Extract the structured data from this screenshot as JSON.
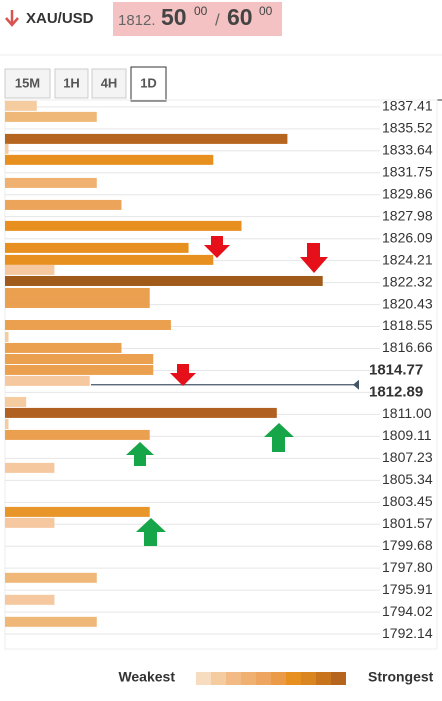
{
  "header": {
    "symbol": "XAU/USD",
    "bid_prefix": "1812.",
    "bid_big": "50",
    "bid_sup": "00",
    "separator": "/",
    "ask_big": "60",
    "ask_sup": "00"
  },
  "tabs": [
    "15M",
    "1H",
    "4H",
    "1D"
  ],
  "active_tab": "1D",
  "chart_data": {
    "type": "bar",
    "orientation": "horizontal",
    "grid": true,
    "ylim": [
      1791.2,
      1838.0
    ],
    "xlim": [
      0,
      100
    ],
    "yticks": [
      1837.41,
      1835.52,
      1833.64,
      1831.75,
      1829.86,
      1827.98,
      1826.09,
      1824.21,
      1822.32,
      1820.43,
      1818.55,
      1816.66,
      1814.77,
      1812.89,
      {
        "value": 1811,
        "label": "1811.00"
      },
      1809.11,
      1807.23,
      1805.34,
      1803.45,
      1801.57,
      1799.68,
      {
        "value": 1797.8,
        "label": "1797.80"
      },
      1795.91,
      1794.02,
      1792.14
    ],
    "bold_yticks": [
      1814.77,
      1812.89
    ],
    "price_line": 1813.55,
    "bars": [
      {
        "price": 1837.5,
        "strength": 9,
        "color": "#f5cba0"
      },
      {
        "price": 1836.55,
        "strength": 26,
        "color": "#f0b878"
      },
      {
        "price": 1834.66,
        "strength": 80,
        "color": "#b5651d"
      },
      {
        "price": 1833.8,
        "strength": 1,
        "color": "#f5cba0"
      },
      {
        "price": 1832.86,
        "strength": 59,
        "color": "#e8901f"
      },
      {
        "price": 1830.88,
        "strength": 26,
        "color": "#f0b070"
      },
      {
        "price": 1828.99,
        "strength": 33,
        "color": "#eca35a"
      },
      {
        "price": 1827.19,
        "strength": 67,
        "color": "#e8901f"
      },
      {
        "price": 1825.3,
        "strength": 52,
        "color": "#e8901f"
      },
      {
        "price": 1824.27,
        "strength": 59,
        "color": "#e8901f"
      },
      {
        "price": 1823.41,
        "strength": 14,
        "color": "#f5c8a0"
      },
      {
        "price": 1822.46,
        "strength": 90,
        "color": "#a05a1a"
      },
      {
        "price": 1821.43,
        "strength": 41,
        "color": "#eba050"
      },
      {
        "price": 1820.57,
        "strength": 41,
        "color": "#eba050"
      },
      {
        "price": 1818.68,
        "strength": 47,
        "color": "#eba050"
      },
      {
        "price": 1817.65,
        "strength": 1,
        "color": "#f5cba0"
      },
      {
        "price": 1816.71,
        "strength": 33,
        "color": "#eba050"
      },
      {
        "price": 1815.76,
        "strength": 42,
        "color": "#eba050"
      },
      {
        "price": 1814.82,
        "strength": 42,
        "color": "#eba050"
      },
      {
        "price": 1813.88,
        "strength": 24,
        "color": "#f5c8a0"
      },
      {
        "price": 1812.07,
        "strength": 6,
        "color": "#f5cba0"
      },
      {
        "price": 1811.13,
        "strength": 77,
        "color": "#b06020"
      },
      {
        "price": 1810.18,
        "strength": 1,
        "color": "#f5cba0"
      },
      {
        "price": 1809.24,
        "strength": 41,
        "color": "#eba050"
      },
      {
        "price": 1806.41,
        "strength": 14,
        "color": "#f5c8a0"
      },
      {
        "price": 1802.63,
        "strength": 41,
        "color": "#e8952a"
      },
      {
        "price": 1801.69,
        "strength": 14,
        "color": "#f5c8a0"
      },
      {
        "price": 1796.97,
        "strength": 26,
        "color": "#f0b878"
      },
      {
        "price": 1795.08,
        "strength": 14,
        "color": "#f5c8a0"
      },
      {
        "price": 1793.19,
        "strength": 26,
        "color": "#f0b878"
      }
    ],
    "legend": {
      "weak_label": "Weakest",
      "strong_label": "Strongest",
      "colors": [
        "#f8dcc0",
        "#f5cba0",
        "#f2bb85",
        "#f0b070",
        "#eda560",
        "#eb9a48",
        "#e8901f",
        "#d98520",
        "#c8741c",
        "#b5651d"
      ]
    }
  }
}
